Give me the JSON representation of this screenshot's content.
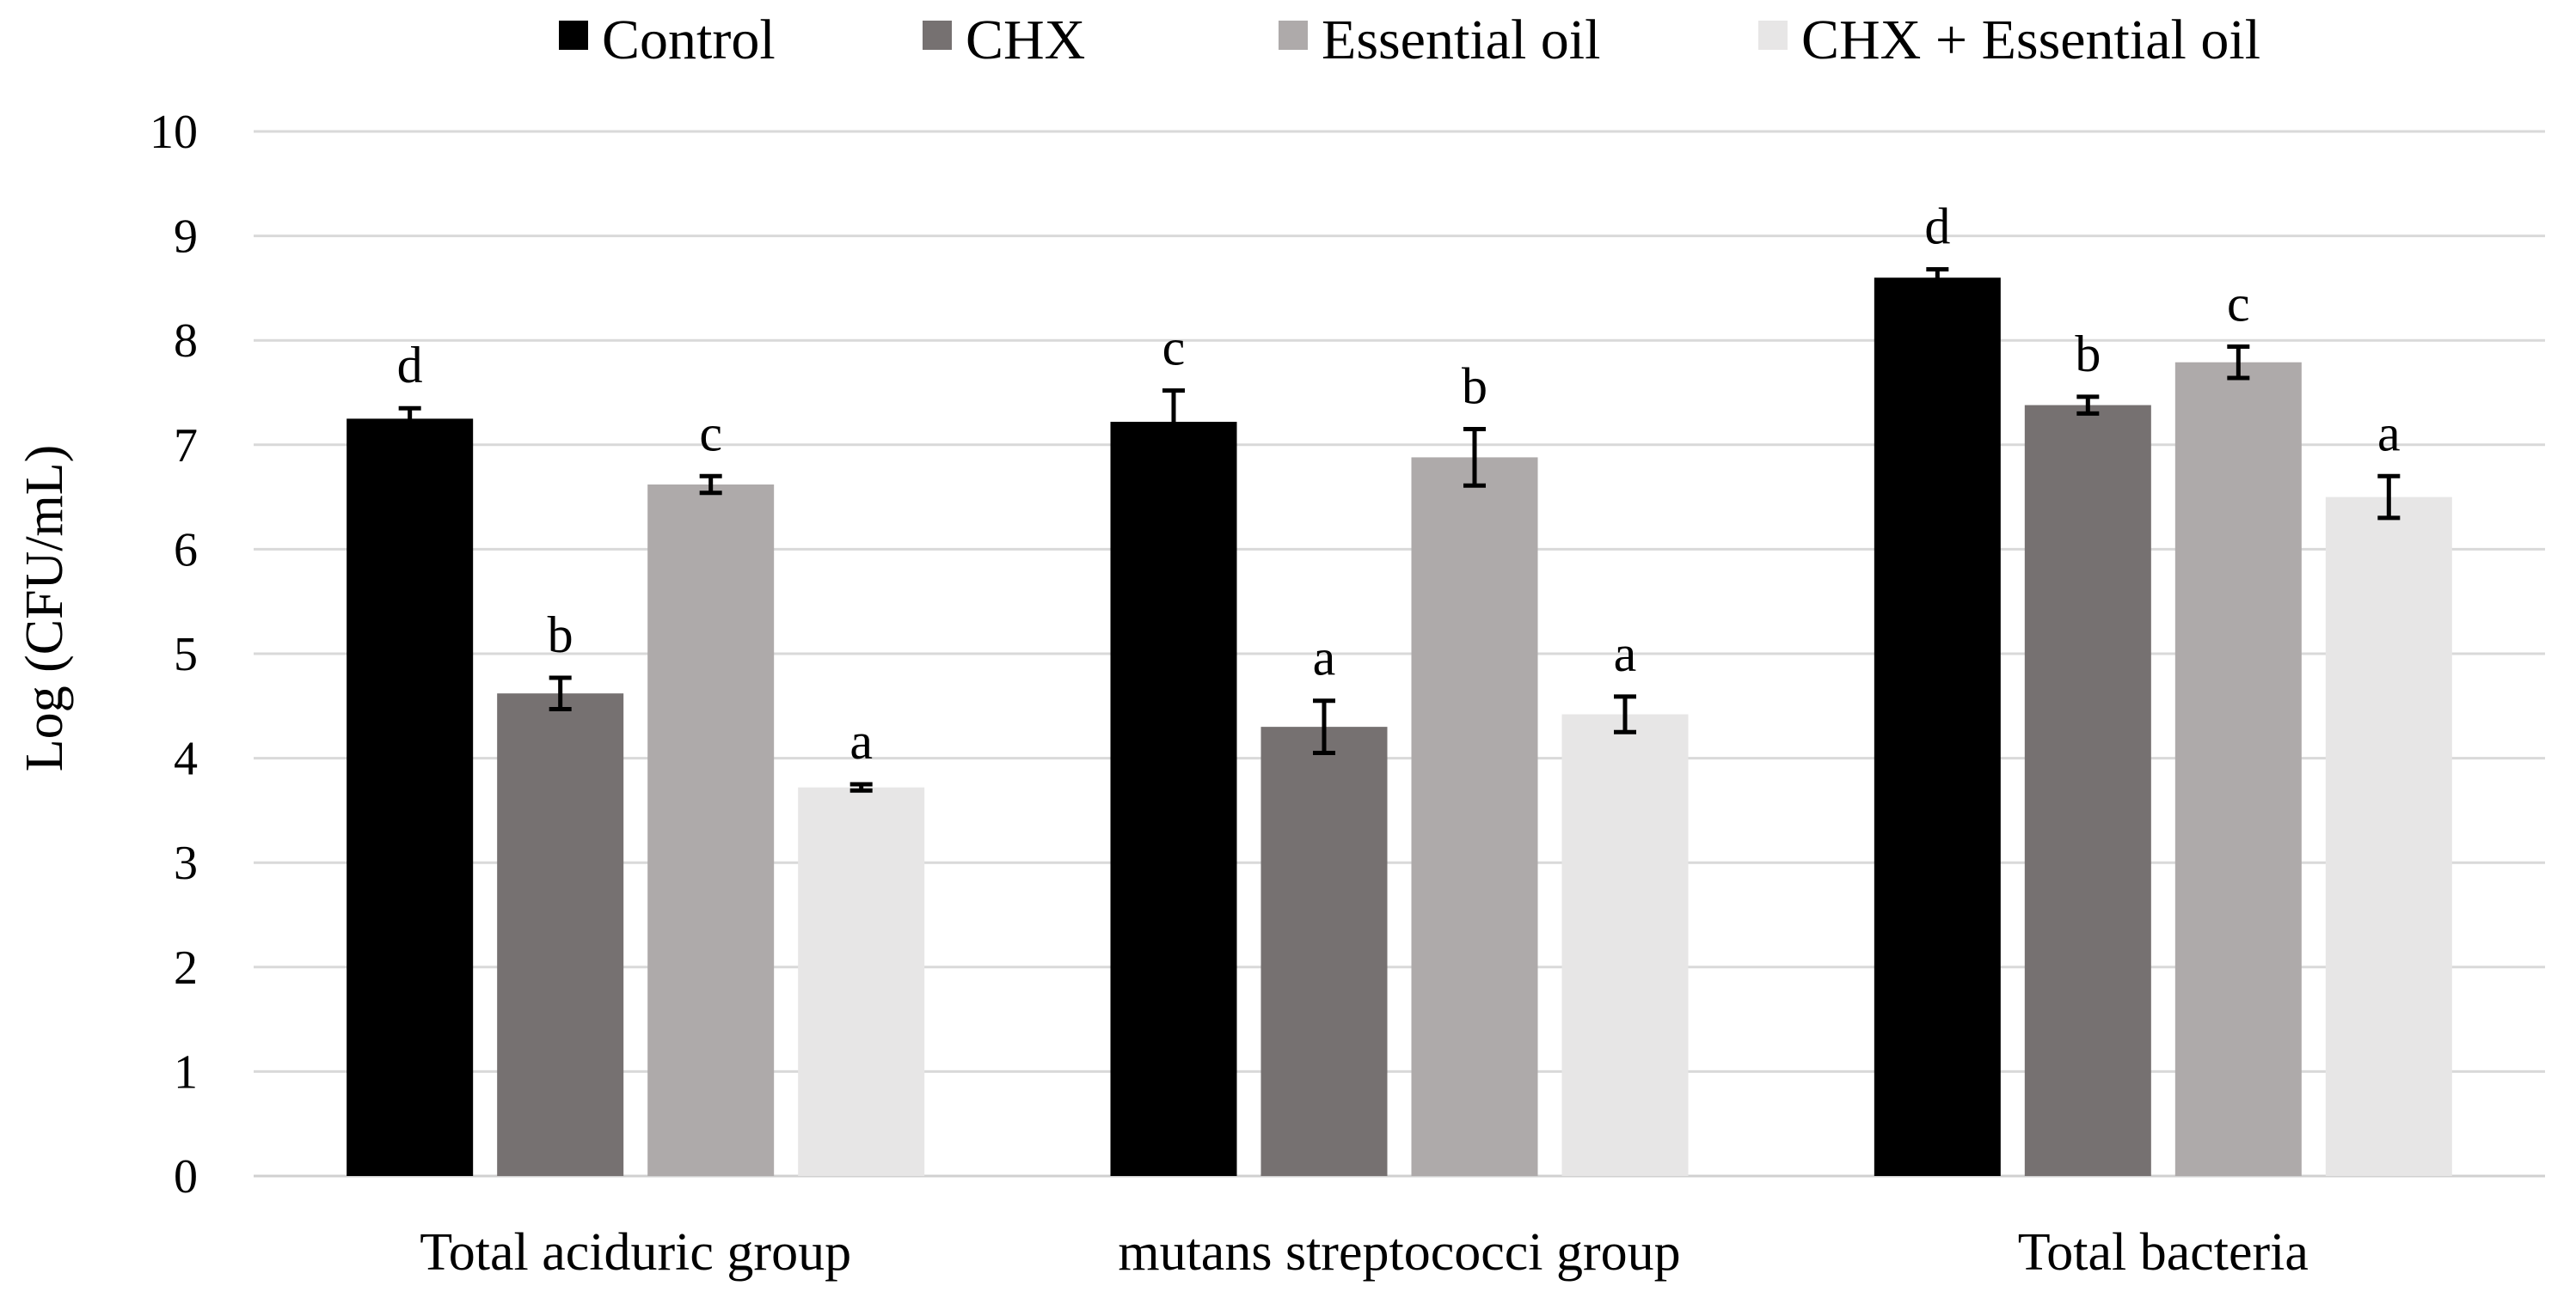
{
  "chart_data": {
    "type": "bar",
    "title": "",
    "xlabel": "",
    "ylabel": "Log (CFU/mL)",
    "ylim": [
      0,
      10
    ],
    "yticks": [
      0,
      1,
      2,
      3,
      4,
      5,
      6,
      7,
      8,
      9,
      10
    ],
    "grid": true,
    "legend_position": "top-center",
    "categories": [
      "Total aciduric group",
      "mutans streptococci group",
      "Total bacteria"
    ],
    "series": [
      {
        "name": "Control",
        "color": "#000000",
        "values": [
          7.25,
          7.22,
          8.6
        ],
        "errors": [
          0.1,
          0.3,
          0.08
        ],
        "labels": [
          "d",
          "c",
          "d"
        ]
      },
      {
        "name": "CHX",
        "color": "#767171",
        "values": [
          4.62,
          4.3,
          7.38
        ],
        "errors": [
          0.15,
          0.25,
          0.08
        ],
        "labels": [
          "b",
          "a",
          "b"
        ]
      },
      {
        "name": "Essential oil",
        "color": "#aeaaaa",
        "values": [
          6.62,
          6.88,
          7.79
        ],
        "errors": [
          0.08,
          0.27,
          0.15
        ],
        "labels": [
          "c",
          "b",
          "c"
        ]
      },
      {
        "name": "CHX + Essential oil",
        "color": "#e7e6e6",
        "values": [
          3.72,
          4.42,
          6.5
        ],
        "errors": [
          0.03,
          0.17,
          0.2
        ],
        "labels": [
          "a",
          "a",
          "a"
        ]
      }
    ]
  }
}
